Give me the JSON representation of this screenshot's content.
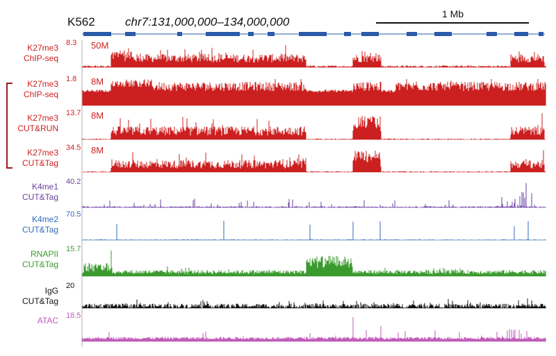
{
  "header": {
    "cell_line": "K562",
    "region": "chr7:131,000,000–134,000,000",
    "scale_bar": "1 Mb"
  },
  "tracks": [
    {
      "key": "t1",
      "line1": "K27me3",
      "line2": "ChIP-seq",
      "max": "8.3",
      "depth": "50M",
      "color": "#cc1f1f",
      "type": "broad",
      "bracket": false
    },
    {
      "key": "t2",
      "line1": "K27me3",
      "line2": "ChIP-seq",
      "max": "1.8",
      "depth": "8M",
      "color": "#cc1f1f",
      "type": "saturated",
      "bracket": true
    },
    {
      "key": "t3",
      "line1": "K27me3",
      "line2": "CUT&RUN",
      "max": "13.7",
      "depth": "8M",
      "color": "#cc1f1f",
      "type": "domains",
      "bracket": true
    },
    {
      "key": "t4",
      "line1": "K27me3",
      "line2": "CUT&Tag",
      "max": "34.5",
      "depth": "8M",
      "color": "#cc1f1f",
      "type": "domains",
      "bracket": true
    },
    {
      "key": "t5",
      "line1": "K4me1",
      "line2": "CUT&Tag",
      "max": "40.2",
      "depth": "",
      "color": "#6a3fa0",
      "type": "sparse",
      "bracket": false
    },
    {
      "key": "t6",
      "line1": "K4me2",
      "line2": "CUT&Tag",
      "max": "70.5",
      "depth": "",
      "color": "#2e6ab8",
      "type": "spikes",
      "bracket": false
    },
    {
      "key": "t7",
      "line1": "RNAPII",
      "line2": "CUT&Tag",
      "max": "15.7",
      "depth": "",
      "color": "#3a9a2e",
      "type": "rnapii",
      "bracket": false
    },
    {
      "key": "t8",
      "line1": "IgG",
      "line2": "CUT&Tag",
      "max": "20",
      "depth": "",
      "color": "#111111",
      "type": "noise",
      "bracket": false
    },
    {
      "key": "t9",
      "line1": "ATAC",
      "line2": "",
      "max": "18.5",
      "depth": "",
      "color": "#c05ab8",
      "type": "atac",
      "bracket": false
    }
  ],
  "colors": {
    "red": "#cc1f1f",
    "purple": "#6a3fa0",
    "blue": "#2e6ab8",
    "green": "#3a9a2e",
    "black": "#111111",
    "magenta": "#c05ab8",
    "gene": "#2a5aa8",
    "bracket": "#9b1c1c"
  }
}
